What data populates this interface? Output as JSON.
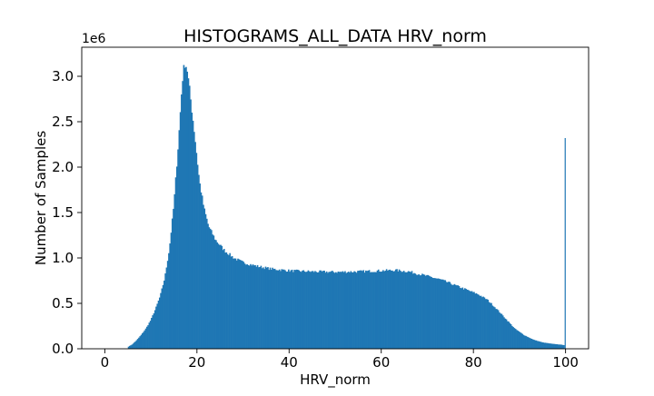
{
  "chart_data": {
    "type": "bar",
    "subtype": "histogram",
    "title": "HISTOGRAMS_ALL_DATA HRV_norm",
    "xlabel": "HRV_norm",
    "ylabel": "Number of Samples",
    "y_offset_label": "1e6",
    "xlim": [
      -5,
      105
    ],
    "ylim": [
      0,
      3.32
    ],
    "y_unit_multiplier": 1000000,
    "x_ticks": [
      0,
      20,
      40,
      60,
      80,
      100
    ],
    "x_tick_labels": [
      "0",
      "20",
      "40",
      "60",
      "80",
      "100"
    ],
    "y_ticks": [
      0,
      0.5,
      1.0,
      1.5,
      2.0,
      2.5,
      3.0
    ],
    "y_tick_labels": [
      "0.0",
      "0.5",
      "1.0",
      "1.5",
      "2.0",
      "2.5",
      "3.0"
    ],
    "bar_color": "#1f77b4",
    "grid": false,
    "legend": "none",
    "bin_width": 0.25,
    "density_points": [
      [
        5,
        0.02
      ],
      [
        6,
        0.05
      ],
      [
        7,
        0.1
      ],
      [
        8,
        0.16
      ],
      [
        9,
        0.23
      ],
      [
        10,
        0.32
      ],
      [
        11,
        0.44
      ],
      [
        12,
        0.58
      ],
      [
        13,
        0.78
      ],
      [
        14,
        1.1
      ],
      [
        15,
        1.6
      ],
      [
        16,
        2.3
      ],
      [
        16.8,
        2.95
      ],
      [
        17.3,
        3.15
      ],
      [
        17.8,
        3.1
      ],
      [
        18.5,
        2.8
      ],
      [
        19.5,
        2.35
      ],
      [
        20.5,
        1.85
      ],
      [
        21.5,
        1.55
      ],
      [
        22.5,
        1.35
      ],
      [
        24,
        1.2
      ],
      [
        26,
        1.08
      ],
      [
        28,
        1.0
      ],
      [
        30,
        0.95
      ],
      [
        33,
        0.91
      ],
      [
        36,
        0.88
      ],
      [
        40,
        0.86
      ],
      [
        45,
        0.85
      ],
      [
        50,
        0.845
      ],
      [
        55,
        0.85
      ],
      [
        60,
        0.86
      ],
      [
        63,
        0.865
      ],
      [
        66,
        0.85
      ],
      [
        70,
        0.8
      ],
      [
        73,
        0.76
      ],
      [
        76,
        0.7
      ],
      [
        79,
        0.64
      ],
      [
        81,
        0.6
      ],
      [
        83,
        0.54
      ],
      [
        85,
        0.44
      ],
      [
        87,
        0.33
      ],
      [
        89,
        0.22
      ],
      [
        91,
        0.15
      ],
      [
        93,
        0.1
      ],
      [
        95,
        0.07
      ],
      [
        97,
        0.055
      ],
      [
        99,
        0.045
      ],
      [
        99.75,
        0.04
      ]
    ],
    "spike": {
      "x": 100,
      "value": 2.32
    }
  }
}
